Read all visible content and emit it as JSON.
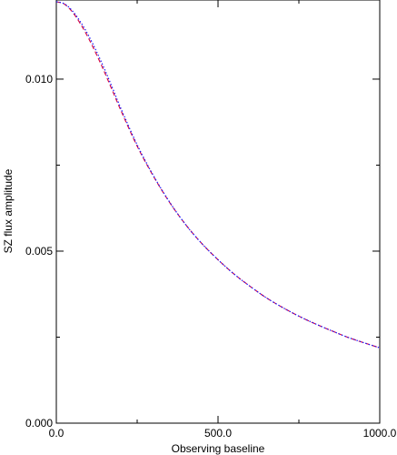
{
  "chart_data": {
    "type": "line",
    "title": "",
    "xlabel": "Observing baseline",
    "ylabel": "SZ flux amplitude",
    "xlim": [
      0,
      1000
    ],
    "ylim": [
      0,
      0.0123
    ],
    "grid": false,
    "legend": "none",
    "x_ticks": [
      {
        "value": 0,
        "label": "0.0"
      },
      {
        "value": 500,
        "label": "500.0"
      },
      {
        "value": 1000,
        "label": "1000.0"
      }
    ],
    "y_ticks": [
      {
        "value": 0,
        "label": "0.000"
      },
      {
        "value": 0.005,
        "label": "0.005"
      },
      {
        "value": 0.01,
        "label": "0.010"
      }
    ],
    "series": [
      {
        "color": "#d6003c",
        "style": "dashed",
        "x": [
          0,
          25,
          50,
          75,
          100,
          125,
          150,
          175,
          200,
          250,
          300,
          350,
          400,
          450,
          500,
          550,
          600,
          650,
          700,
          750,
          800,
          850,
          900,
          950,
          1000
        ],
        "y": [
          0.01225,
          0.01218,
          0.01195,
          0.0116,
          0.01118,
          0.0107,
          0.01018,
          0.00963,
          0.00908,
          0.00805,
          0.00718,
          0.00642,
          0.00577,
          0.00522,
          0.00475,
          0.00433,
          0.00397,
          0.00364,
          0.00336,
          0.00311,
          0.00289,
          0.00269,
          0.0025,
          0.00234,
          0.00219
        ]
      },
      {
        "color": "#1a1aff",
        "style": "dotted",
        "x": [
          0,
          25,
          50,
          75,
          100,
          125,
          150,
          175,
          200,
          250,
          300,
          350,
          400,
          450,
          500,
          550,
          600,
          650,
          700,
          750,
          800,
          850,
          900,
          950,
          1000
        ],
        "y": [
          0.01225,
          0.01219,
          0.01198,
          0.01166,
          0.01126,
          0.01079,
          0.01027,
          0.00971,
          0.00914,
          0.00809,
          0.0072,
          0.00643,
          0.00577,
          0.00522,
          0.00475,
          0.00433,
          0.00397,
          0.00364,
          0.00336,
          0.00311,
          0.00289,
          0.00269,
          0.0025,
          0.00234,
          0.00219
        ]
      }
    ]
  }
}
